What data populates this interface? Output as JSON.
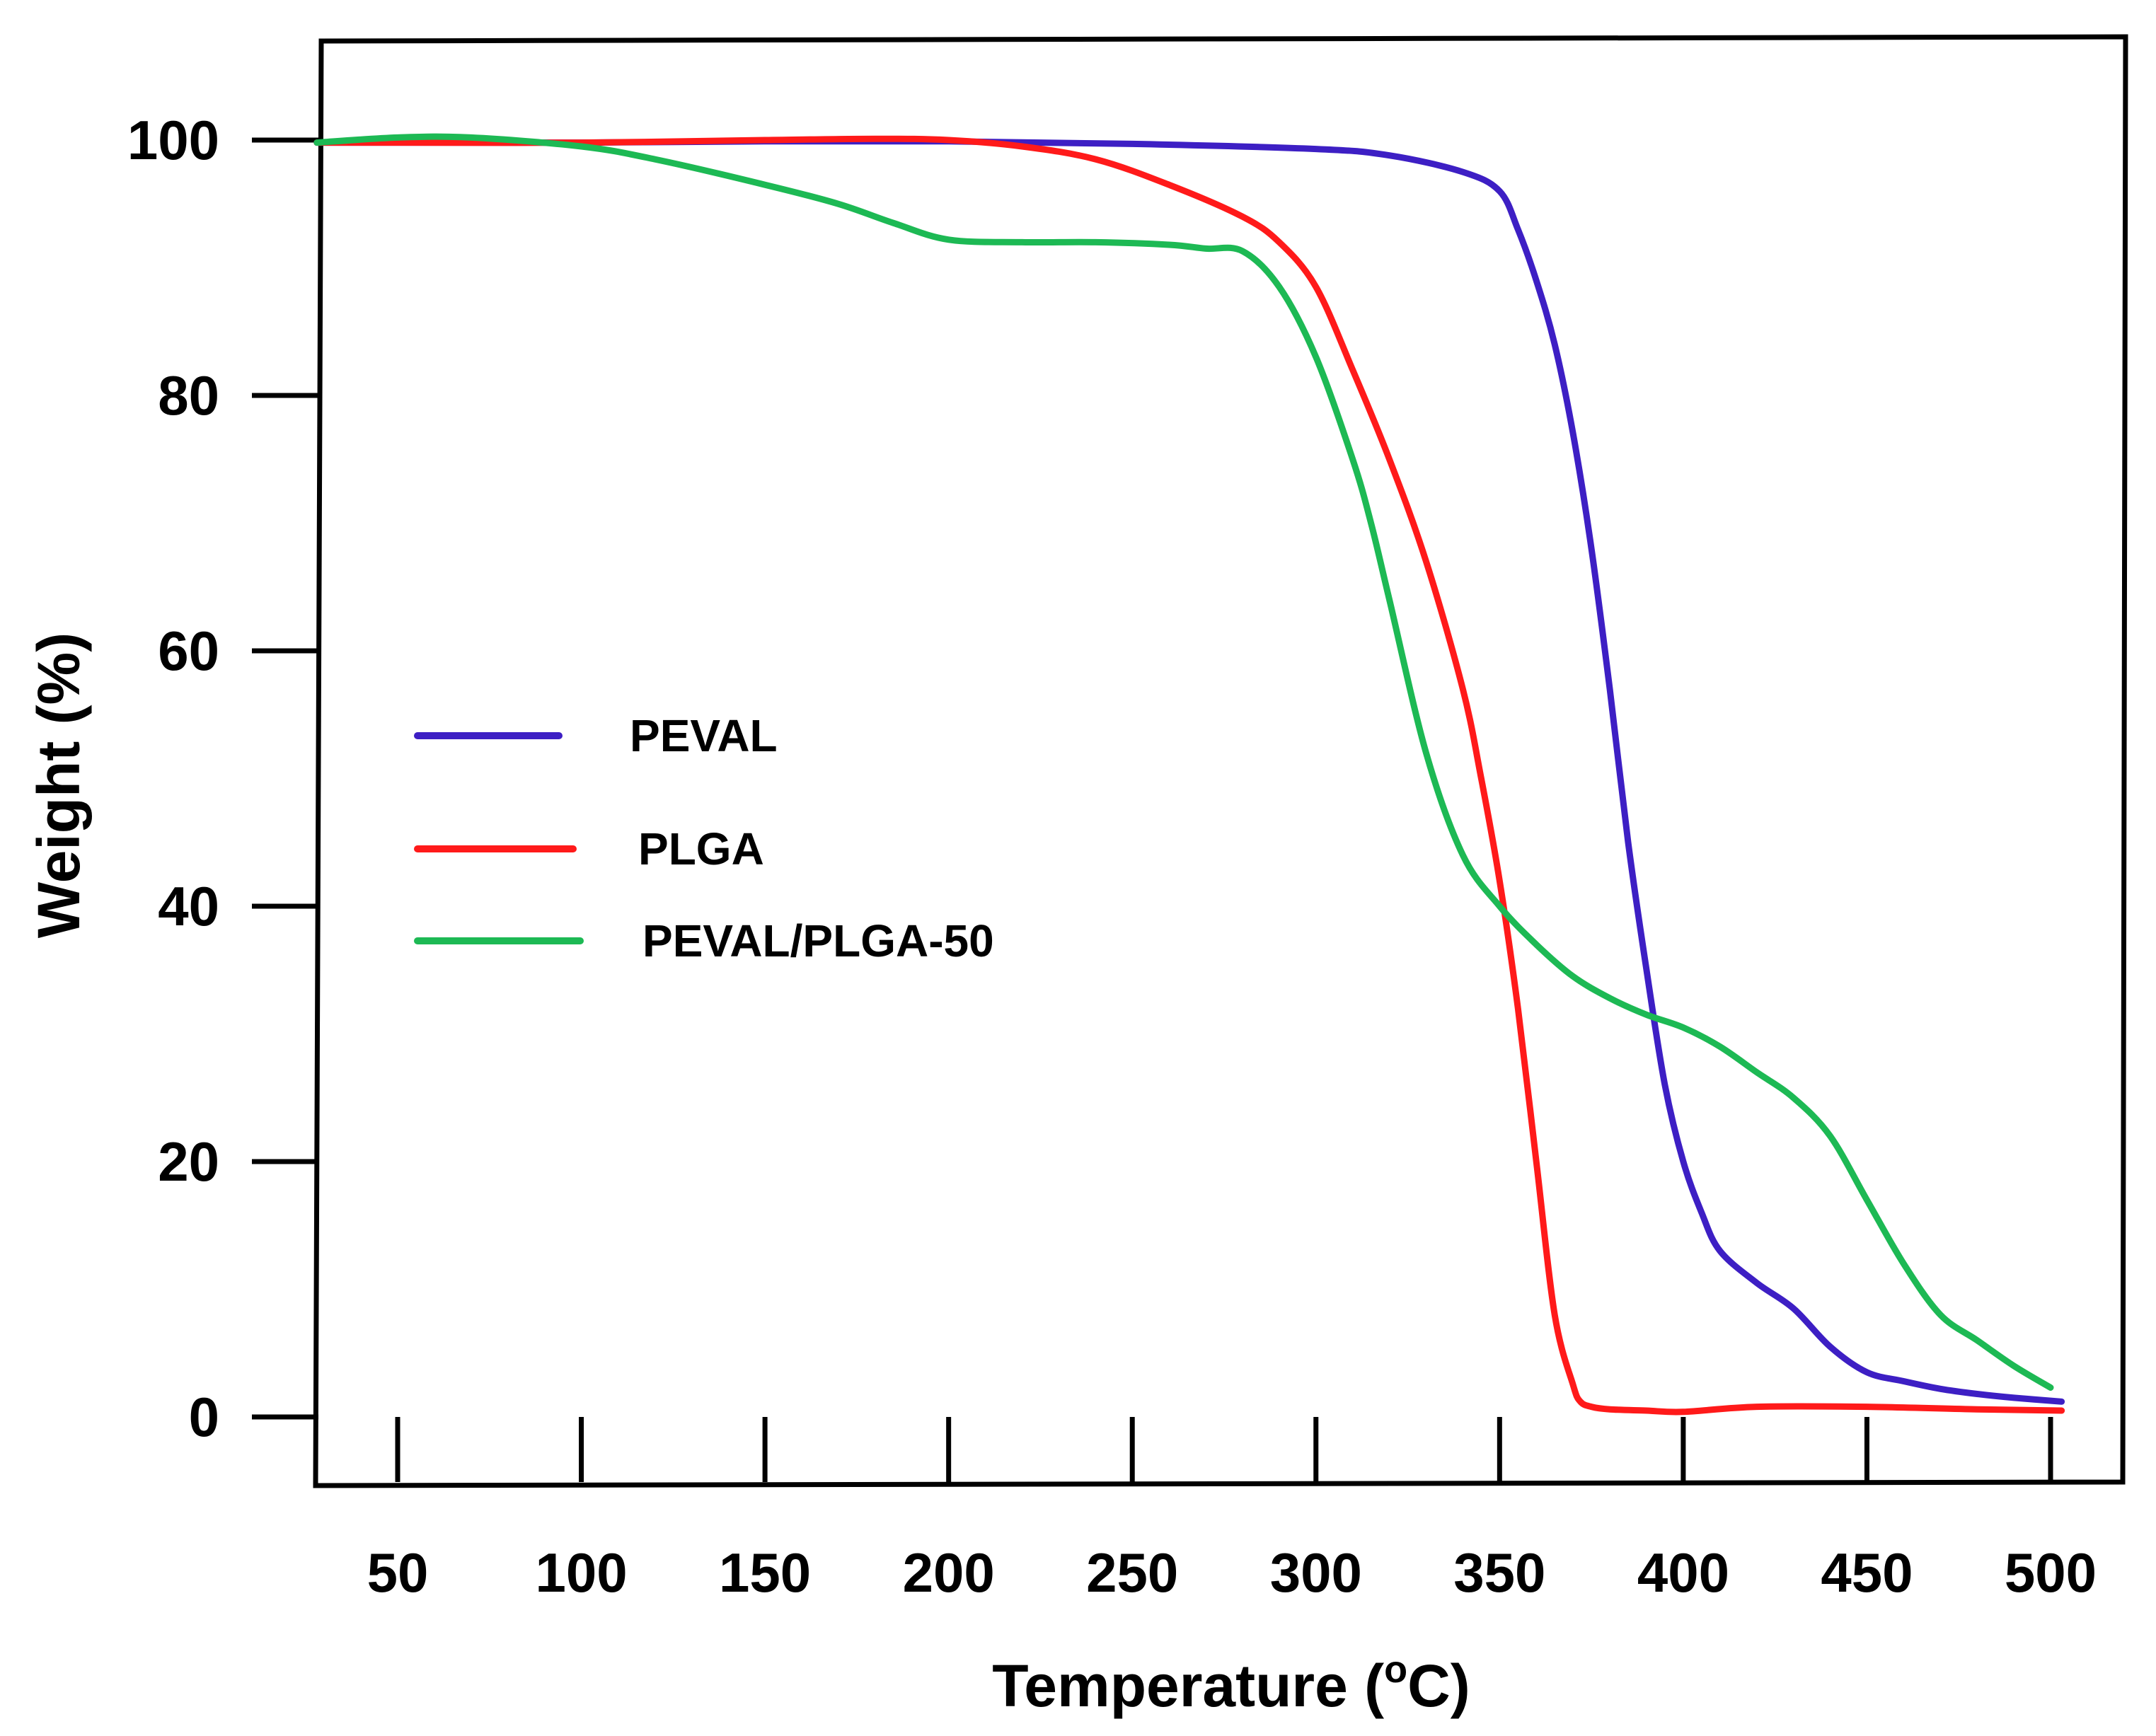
{
  "chart_data": {
    "type": "line",
    "title": "",
    "xlabel": "Temperature (",
    "xlabel_super": "o",
    "xlabel_tail": "C)",
    "ylabel": "Weight (%)",
    "xlim": [
      28,
      510
    ],
    "ylim": [
      -5,
      108
    ],
    "xticks": [
      50,
      100,
      150,
      200,
      250,
      300,
      350,
      400,
      450,
      500
    ],
    "xtick_labels": [
      "50",
      "100",
      "150",
      "200",
      "250",
      "300",
      "350",
      "400",
      "450",
      "500"
    ],
    "yticks": [
      0,
      20,
      40,
      60,
      80,
      100
    ],
    "ytick_labels": [
      "0",
      "20",
      "40",
      "60",
      "80",
      "100"
    ],
    "grid": false,
    "legend_position": "center-left",
    "series": [
      {
        "name": "PEVAL",
        "color": "#3d1fc4",
        "x": [
          28,
          50,
          100,
          150,
          200,
          250,
          300,
          320,
          340,
          350,
          355,
          360,
          365,
          370,
          375,
          380,
          385,
          390,
          395,
          400,
          405,
          410,
          420,
          430,
          440,
          450,
          460,
          470,
          480,
          490,
          503
        ],
        "y": [
          99.8,
          99.8,
          99.8,
          99.9,
          99.9,
          99.7,
          99.3,
          98.8,
          97.5,
          96.0,
          93.0,
          89.0,
          84.0,
          77.0,
          68.0,
          57.0,
          45.0,
          35.0,
          26.0,
          20.0,
          16.0,
          13.0,
          10.5,
          8.5,
          5.5,
          3.5,
          2.8,
          2.2,
          1.8,
          1.5,
          1.2
        ]
      },
      {
        "name": "PLGA",
        "color": "#ff1a1a",
        "x": [
          28,
          50,
          100,
          150,
          180,
          200,
          220,
          240,
          260,
          280,
          290,
          300,
          310,
          320,
          330,
          340,
          345,
          350,
          355,
          360,
          365,
          370,
          372,
          375,
          380,
          390,
          400,
          420,
          450,
          480,
          503
        ],
        "y": [
          99.8,
          99.8,
          99.8,
          100.0,
          100.1,
          100.0,
          99.5,
          98.5,
          96.5,
          94.0,
          92.0,
          88.5,
          82.0,
          75.0,
          67.0,
          57.0,
          50.0,
          42.0,
          32.0,
          20.0,
          8.0,
          2.5,
          1.2,
          0.8,
          0.6,
          0.5,
          0.4,
          0.8,
          0.8,
          0.6,
          0.5
        ]
      },
      {
        "name": "PEVAL/PLGA-50",
        "color": "#1db954",
        "x": [
          28,
          50,
          70,
          100,
          120,
          150,
          170,
          185,
          200,
          220,
          240,
          260,
          270,
          280,
          290,
          300,
          310,
          315,
          320,
          330,
          340,
          350,
          360,
          370,
          380,
          390,
          400,
          410,
          420,
          430,
          440,
          450,
          460,
          470,
          480,
          490,
          500
        ],
        "y": [
          99.8,
          100.2,
          100.2,
          99.5,
          98.5,
          96.5,
          95.0,
          93.5,
          92.2,
          92.0,
          92.0,
          91.8,
          91.5,
          91.3,
          88.5,
          83.0,
          75.0,
          70.0,
          64.0,
          52.0,
          44.0,
          40.0,
          37.0,
          34.5,
          32.8,
          31.5,
          30.5,
          29.0,
          27.0,
          25.0,
          22.0,
          17.0,
          12.0,
          8.0,
          6.0,
          4.0,
          2.3
        ]
      }
    ]
  }
}
